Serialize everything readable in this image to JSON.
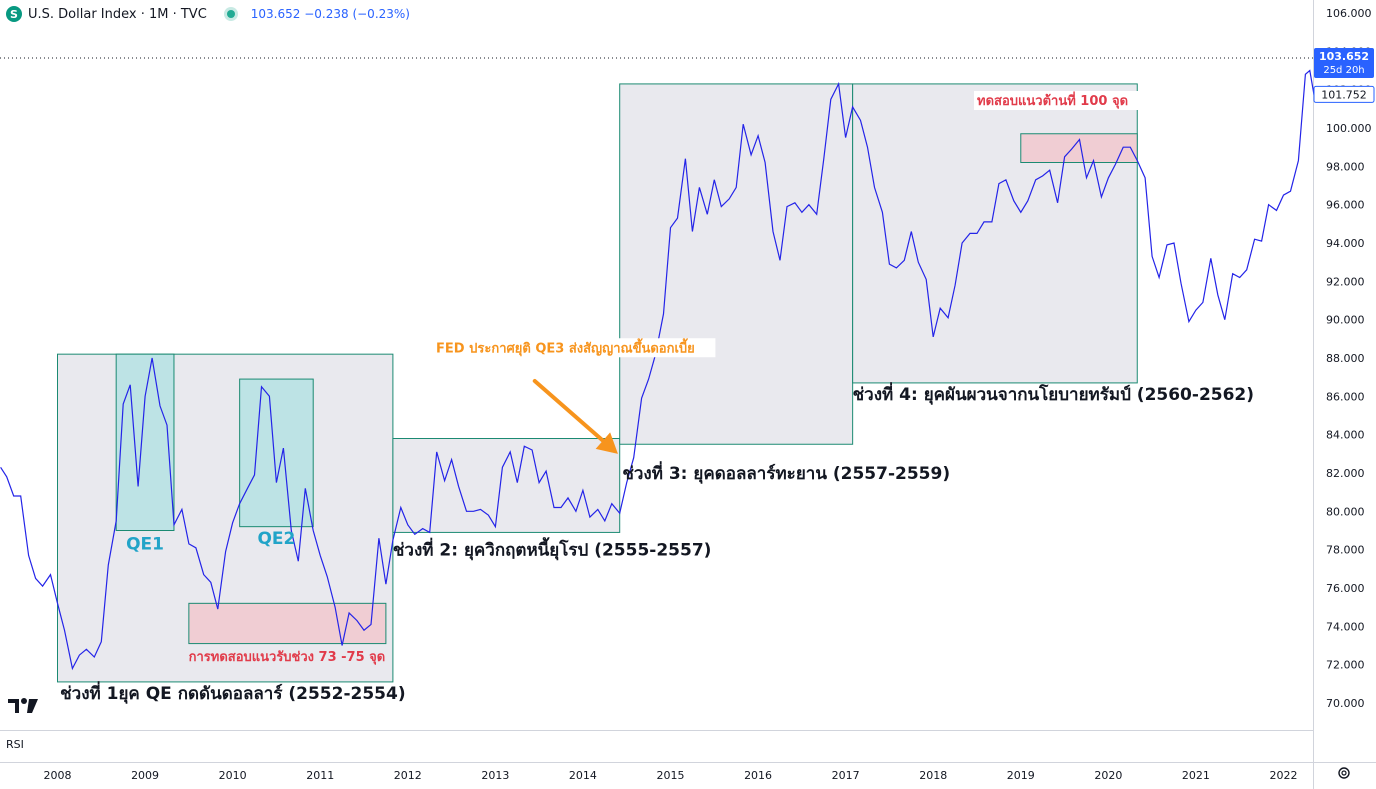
{
  "header": {
    "symbol_icon": "S",
    "title": "U.S. Dollar Index · 1M · TVC",
    "quote": "103.652  −0.238 (−0.23%)",
    "status_icon": "market-open-dot"
  },
  "pane_label": "RSI",
  "colors": {
    "line": "#2424e8",
    "box_fill": "#e9e9ee",
    "box_border": "#1b8a72",
    "qe_fill": "#bde3e5",
    "qe_text": "#22a4c8",
    "support_fill": "#f0cdd3",
    "support_text": "#e13b4a",
    "arrow": "#f7941d",
    "label_price": "#1e2fd8"
  },
  "chart_data": {
    "type": "line",
    "ylim": [
      68.6,
      106.6
    ],
    "yticks": [
      "106.000",
      "104.000",
      "102.000",
      "100.000",
      "98.000",
      "96.000",
      "94.000",
      "92.000",
      "90.000",
      "88.000",
      "86.000",
      "84.000",
      "82.000",
      "80.000",
      "78.000",
      "76.000",
      "74.000",
      "72.000",
      "70.000"
    ],
    "xticks": [
      {
        "label": "2008",
        "x": 2008.0
      },
      {
        "label": "2009",
        "x": 2009.0
      },
      {
        "label": "2010",
        "x": 2010.0
      },
      {
        "label": "2011",
        "x": 2011.0
      },
      {
        "label": "2012",
        "x": 2012.0
      },
      {
        "label": "2013",
        "x": 2013.0
      },
      {
        "label": "2014",
        "x": 2014.0
      },
      {
        "label": "2015",
        "x": 2015.0
      },
      {
        "label": "2016",
        "x": 2016.0
      },
      {
        "label": "2017",
        "x": 2017.0
      },
      {
        "label": "2018",
        "x": 2018.0
      },
      {
        "label": "2019",
        "x": 2019.0
      },
      {
        "label": "2020",
        "x": 2020.0
      },
      {
        "label": "2021",
        "x": 2021.0
      },
      {
        "label": "2022",
        "x": 2022.0
      }
    ],
    "xlim": [
      2007.35,
      2022.35
    ],
    "price_label": {
      "value": 103.652,
      "text": "103.652",
      "sub": "25d 20h"
    },
    "prev_label": {
      "value": 101.752,
      "text": "101.752"
    },
    "series": [
      {
        "points": [
          [
            2007.35,
            82.3
          ],
          [
            2007.42,
            81.8
          ],
          [
            2007.5,
            80.8
          ],
          [
            2007.58,
            80.8
          ],
          [
            2007.67,
            77.7
          ],
          [
            2007.75,
            76.5
          ],
          [
            2007.83,
            76.1
          ],
          [
            2007.92,
            76.7
          ],
          [
            2008.0,
            75.2
          ],
          [
            2008.08,
            73.8
          ],
          [
            2008.17,
            71.8
          ],
          [
            2008.25,
            72.5
          ],
          [
            2008.33,
            72.8
          ],
          [
            2008.42,
            72.4
          ],
          [
            2008.5,
            73.2
          ],
          [
            2008.58,
            77.2
          ],
          [
            2008.67,
            79.5
          ],
          [
            2008.75,
            85.6
          ],
          [
            2008.83,
            86.6
          ],
          [
            2008.92,
            81.3
          ],
          [
            2009.0,
            86.0
          ],
          [
            2009.08,
            88.0
          ],
          [
            2009.17,
            85.5
          ],
          [
            2009.25,
            84.5
          ],
          [
            2009.33,
            79.3
          ],
          [
            2009.42,
            80.1
          ],
          [
            2009.5,
            78.3
          ],
          [
            2009.58,
            78.1
          ],
          [
            2009.67,
            76.7
          ],
          [
            2009.75,
            76.3
          ],
          [
            2009.83,
            74.9
          ],
          [
            2009.92,
            77.9
          ],
          [
            2010.0,
            79.4
          ],
          [
            2010.08,
            80.4
          ],
          [
            2010.17,
            81.2
          ],
          [
            2010.25,
            81.9
          ],
          [
            2010.33,
            86.5
          ],
          [
            2010.42,
            86.0
          ],
          [
            2010.5,
            81.5
          ],
          [
            2010.58,
            83.3
          ],
          [
            2010.67,
            79.0
          ],
          [
            2010.75,
            77.4
          ],
          [
            2010.83,
            81.2
          ],
          [
            2010.92,
            79.0
          ],
          [
            2011.0,
            77.7
          ],
          [
            2011.08,
            76.6
          ],
          [
            2011.17,
            75.0
          ],
          [
            2011.25,
            73.0
          ],
          [
            2011.33,
            74.7
          ],
          [
            2011.42,
            74.3
          ],
          [
            2011.5,
            73.8
          ],
          [
            2011.58,
            74.1
          ],
          [
            2011.67,
            78.6
          ],
          [
            2011.75,
            76.2
          ],
          [
            2011.83,
            78.5
          ],
          [
            2011.92,
            80.2
          ],
          [
            2012.0,
            79.3
          ],
          [
            2012.08,
            78.8
          ],
          [
            2012.17,
            79.1
          ],
          [
            2012.25,
            78.9
          ],
          [
            2012.33,
            83.1
          ],
          [
            2012.42,
            81.6
          ],
          [
            2012.5,
            82.7
          ],
          [
            2012.58,
            81.3
          ],
          [
            2012.67,
            80.0
          ],
          [
            2012.75,
            80.0
          ],
          [
            2012.83,
            80.1
          ],
          [
            2012.92,
            79.8
          ],
          [
            2013.0,
            79.2
          ],
          [
            2013.08,
            82.3
          ],
          [
            2013.17,
            83.1
          ],
          [
            2013.25,
            81.5
          ],
          [
            2013.33,
            83.4
          ],
          [
            2013.42,
            83.2
          ],
          [
            2013.5,
            81.5
          ],
          [
            2013.58,
            82.1
          ],
          [
            2013.67,
            80.2
          ],
          [
            2013.75,
            80.2
          ],
          [
            2013.83,
            80.7
          ],
          [
            2013.92,
            80.0
          ],
          [
            2014.0,
            81.1
          ],
          [
            2014.08,
            79.7
          ],
          [
            2014.17,
            80.1
          ],
          [
            2014.25,
            79.5
          ],
          [
            2014.33,
            80.4
          ],
          [
            2014.42,
            79.9
          ],
          [
            2014.5,
            81.5
          ],
          [
            2014.58,
            82.8
          ],
          [
            2014.67,
            85.9
          ],
          [
            2014.75,
            86.9
          ],
          [
            2014.83,
            88.2
          ],
          [
            2014.92,
            90.3
          ],
          [
            2015.0,
            94.8
          ],
          [
            2015.08,
            95.3
          ],
          [
            2015.17,
            98.4
          ],
          [
            2015.25,
            94.6
          ],
          [
            2015.33,
            96.9
          ],
          [
            2015.42,
            95.5
          ],
          [
            2015.5,
            97.3
          ],
          [
            2015.58,
            95.9
          ],
          [
            2015.67,
            96.3
          ],
          [
            2015.75,
            96.9
          ],
          [
            2015.83,
            100.2
          ],
          [
            2015.92,
            98.6
          ],
          [
            2016.0,
            99.6
          ],
          [
            2016.08,
            98.2
          ],
          [
            2016.17,
            94.6
          ],
          [
            2016.25,
            93.1
          ],
          [
            2016.33,
            95.9
          ],
          [
            2016.42,
            96.1
          ],
          [
            2016.5,
            95.6
          ],
          [
            2016.58,
            96.0
          ],
          [
            2016.67,
            95.5
          ],
          [
            2016.75,
            98.4
          ],
          [
            2016.83,
            101.5
          ],
          [
            2016.92,
            102.3
          ],
          [
            2017.0,
            99.5
          ],
          [
            2017.08,
            101.1
          ],
          [
            2017.17,
            100.4
          ],
          [
            2017.25,
            99.0
          ],
          [
            2017.33,
            96.9
          ],
          [
            2017.42,
            95.6
          ],
          [
            2017.5,
            92.9
          ],
          [
            2017.58,
            92.7
          ],
          [
            2017.67,
            93.1
          ],
          [
            2017.75,
            94.6
          ],
          [
            2017.83,
            93.0
          ],
          [
            2017.92,
            92.1
          ],
          [
            2018.0,
            89.1
          ],
          [
            2018.08,
            90.6
          ],
          [
            2018.17,
            90.1
          ],
          [
            2018.25,
            91.8
          ],
          [
            2018.33,
            94.0
          ],
          [
            2018.42,
            94.5
          ],
          [
            2018.5,
            94.5
          ],
          [
            2018.58,
            95.1
          ],
          [
            2018.67,
            95.1
          ],
          [
            2018.75,
            97.1
          ],
          [
            2018.83,
            97.3
          ],
          [
            2018.92,
            96.2
          ],
          [
            2019.0,
            95.6
          ],
          [
            2019.08,
            96.2
          ],
          [
            2019.17,
            97.3
          ],
          [
            2019.25,
            97.5
          ],
          [
            2019.33,
            97.8
          ],
          [
            2019.42,
            96.1
          ],
          [
            2019.5,
            98.5
          ],
          [
            2019.58,
            98.9
          ],
          [
            2019.67,
            99.4
          ],
          [
            2019.75,
            97.4
          ],
          [
            2019.83,
            98.3
          ],
          [
            2019.92,
            96.4
          ],
          [
            2020.0,
            97.4
          ],
          [
            2020.08,
            98.1
          ],
          [
            2020.17,
            99.0
          ],
          [
            2020.25,
            99.0
          ],
          [
            2020.33,
            98.3
          ],
          [
            2020.42,
            97.4
          ],
          [
            2020.5,
            93.3
          ],
          [
            2020.58,
            92.2
          ],
          [
            2020.67,
            93.9
          ],
          [
            2020.75,
            94.0
          ],
          [
            2020.83,
            91.9
          ],
          [
            2020.92,
            89.9
          ],
          [
            2021.0,
            90.5
          ],
          [
            2021.08,
            90.9
          ],
          [
            2021.17,
            93.2
          ],
          [
            2021.25,
            91.3
          ],
          [
            2021.33,
            90.0
          ],
          [
            2021.42,
            92.4
          ],
          [
            2021.5,
            92.2
          ],
          [
            2021.58,
            92.6
          ],
          [
            2021.67,
            94.2
          ],
          [
            2021.75,
            94.1
          ],
          [
            2021.83,
            96.0
          ],
          [
            2021.92,
            95.7
          ],
          [
            2022.0,
            96.5
          ],
          [
            2022.08,
            96.7
          ],
          [
            2022.17,
            98.3
          ],
          [
            2022.25,
            102.8
          ],
          [
            2022.3,
            103.0
          ],
          [
            2022.35,
            101.7
          ]
        ]
      }
    ],
    "annotations": [
      {
        "kind": "period-box",
        "x0": 2008.0,
        "x1": 2011.83,
        "y0": 71.1,
        "y1": 88.2,
        "label": "ช่วงที่ 1ยุค QE กดดันดอลลาร์ (2552-2554)",
        "label_x": 2008.03,
        "label_y": 70.2
      },
      {
        "kind": "qe-box",
        "x0": 2008.67,
        "x1": 2009.33,
        "y0": 79.0,
        "y1": 88.2,
        "label": "QE1",
        "label_x": 2009.0,
        "label_y": 78.0
      },
      {
        "kind": "qe-box",
        "x0": 2010.08,
        "x1": 2010.92,
        "y0": 79.2,
        "y1": 86.9,
        "label": "QE2",
        "label_x": 2010.5,
        "label_y": 78.3
      },
      {
        "kind": "support-box",
        "x0": 2009.5,
        "x1": 2011.75,
        "y0": 73.1,
        "y1": 75.2,
        "label": "การทดสอบแนวรับช่วง 73 -75 จุด",
        "label_x": 2010.62,
        "label_y": 72.2
      },
      {
        "kind": "period-box",
        "x0": 2011.83,
        "x1": 2014.42,
        "y0": 78.9,
        "y1": 83.8,
        "label": "ช่วงที่ 2: ยุควิกฤตหนี้ยุโรป (2555-2557)",
        "label_x": 2011.83,
        "label_y": 77.7
      },
      {
        "kind": "period-box",
        "x0": 2014.42,
        "x1": 2017.08,
        "y0": 83.5,
        "y1": 102.3,
        "label": "ช่วงที่ 3: ยุคดอลลาร์ทะยาน (2557-2559)",
        "label_x": 2014.45,
        "label_y": 81.7
      },
      {
        "kind": "period-box",
        "x0": 2017.08,
        "x1": 2020.33,
        "y0": 86.7,
        "y1": 102.3,
        "label": "ช่วงที่ 4: ยุคผันผวนจากนโยบายทรัมป์ (2560-2562)",
        "label_x": 2017.08,
        "label_y": 85.8
      },
      {
        "kind": "support-box",
        "x0": 2019.0,
        "x1": 2020.33,
        "y0": 98.2,
        "y1": 99.7,
        "label": "",
        "label_x": 0,
        "label_y": 0
      },
      {
        "kind": "resist-label",
        "x0": 0,
        "x1": 0,
        "y0": 0,
        "y1": 0,
        "label": "ทดสอบแนวต้านที่ 100 จุด",
        "label_x": 2018.5,
        "label_y": 101.2
      },
      {
        "kind": "fed-label",
        "x0": 0,
        "x1": 0,
        "y0": 0,
        "y1": 0,
        "label": "FED ประกาศยุติ QE3 ส่งสัญญาณขึ้นดอกเบี้ย",
        "label_x": 2013.8,
        "label_y": 88.3
      }
    ],
    "arrow": {
      "from": [
        2013.45,
        86.8
      ],
      "to": [
        2014.4,
        83.0
      ]
    },
    "dotted_line": 103.652
  }
}
